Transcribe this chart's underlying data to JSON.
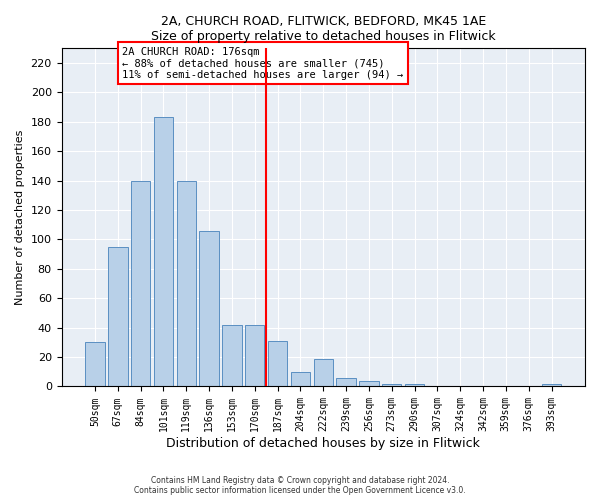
{
  "title1": "2A, CHURCH ROAD, FLITWICK, BEDFORD, MK45 1AE",
  "title2": "Size of property relative to detached houses in Flitwick",
  "xlabel": "Distribution of detached houses by size in Flitwick",
  "ylabel": "Number of detached properties",
  "bar_labels": [
    "50sqm",
    "67sqm",
    "84sqm",
    "101sqm",
    "119sqm",
    "136sqm",
    "153sqm",
    "170sqm",
    "187sqm",
    "204sqm",
    "222sqm",
    "239sqm",
    "256sqm",
    "273sqm",
    "290sqm",
    "307sqm",
    "324sqm",
    "342sqm",
    "359sqm",
    "376sqm",
    "393sqm"
  ],
  "bar_values": [
    30,
    95,
    140,
    183,
    140,
    106,
    42,
    42,
    31,
    10,
    19,
    6,
    4,
    2,
    2,
    0,
    0,
    0,
    0,
    0,
    2
  ],
  "bar_color": "#b8d0e8",
  "bar_edge_color": "#5a8fc2",
  "vline_x": 7,
  "vline_color": "red",
  "annotation_text": "2A CHURCH ROAD: 176sqm\n← 88% of detached houses are smaller (745)\n11% of semi-detached houses are larger (94) →",
  "annotation_box_color": "white",
  "annotation_box_edge": "red",
  "ylim": [
    0,
    230
  ],
  "yticks": [
    0,
    20,
    40,
    60,
    80,
    100,
    120,
    140,
    160,
    180,
    200,
    220
  ],
  "bg_color": "#e8eef5",
  "footer1": "Contains HM Land Registry data © Crown copyright and database right 2024.",
  "footer2": "Contains public sector information licensed under the Open Government Licence v3.0."
}
